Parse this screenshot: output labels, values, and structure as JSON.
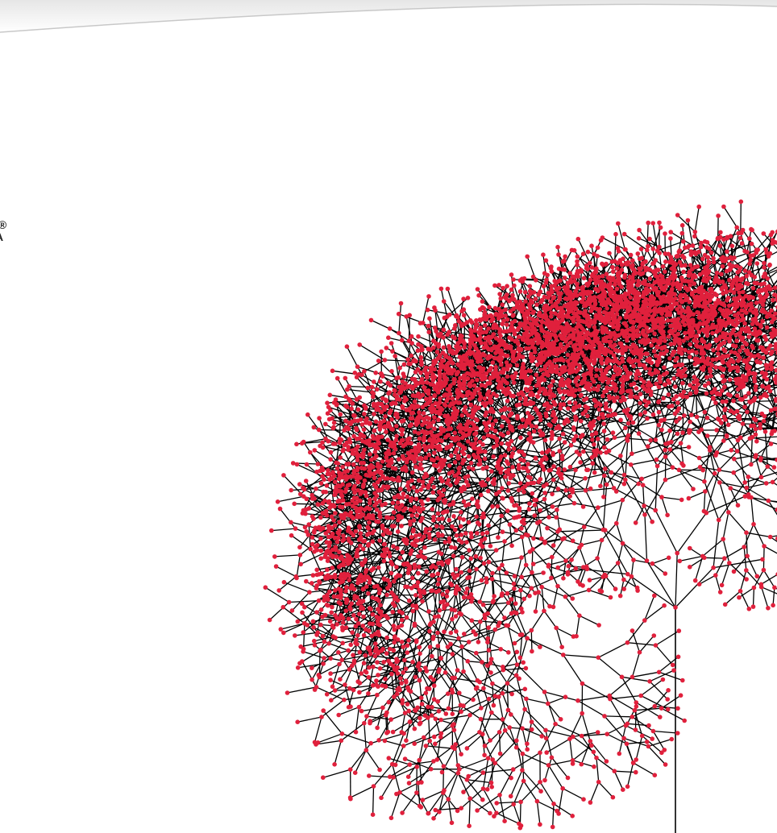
{
  "page": {
    "background_color": "#ffffff",
    "edge_color": "#000000",
    "node_color": "#e0203c",
    "curl_shadow_color": "#c8c8c8"
  },
  "side_text": {
    "line_1": "l®",
    "line_2": "A"
  },
  "illustration": {
    "subject": "branching-tree-graph",
    "trunk_node": "root",
    "levels": 11
  }
}
